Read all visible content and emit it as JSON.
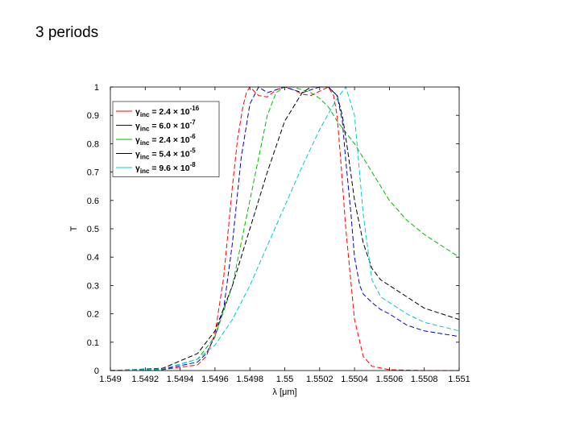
{
  "slide": {
    "title": "3 periods"
  },
  "chart_data": {
    "type": "line",
    "xlabel": "λ [μm]",
    "ylabel": "T",
    "xlim": [
      1.549,
      1.551
    ],
    "ylim": [
      0,
      1
    ],
    "xticks": [
      "1.549",
      "1.5492",
      "1.5494",
      "1.5496",
      "1.5498",
      "1.55",
      "1.5502",
      "1.5504",
      "1.5506",
      "1.5508",
      "1.551"
    ],
    "yticks": [
      "0",
      "0.1",
      "0.2",
      "0.3",
      "0.4",
      "0.5",
      "0.6",
      "0.7",
      "0.8",
      "0.9",
      "1"
    ],
    "grid": false,
    "legend_position": "top-left",
    "series": [
      {
        "name": "γinc = 2.4 × 10⁻¹⁶",
        "legend_base": "γ",
        "legend_sub": "inc",
        "legend_value": " = 2.4 × 10",
        "legend_exp": "-16",
        "color": "#ff0000",
        "dash": "dashed",
        "x": [
          1.549,
          1.5493,
          1.5495,
          1.54955,
          1.5496,
          1.54965,
          1.5497,
          1.54973,
          1.54976,
          1.54978,
          1.5498,
          1.54985,
          1.5499,
          1.54995,
          1.55,
          1.55005,
          1.5501,
          1.55015,
          1.5502,
          1.55025,
          1.55028,
          1.5503,
          1.55032,
          1.55035,
          1.5504,
          1.55045,
          1.5505,
          1.5506,
          1.5508,
          1.551
        ],
        "y": [
          0,
          0.003,
          0.02,
          0.05,
          0.13,
          0.33,
          0.65,
          0.82,
          0.93,
          0.98,
          1.0,
          0.97,
          0.965,
          0.99,
          1.0,
          0.99,
          0.975,
          0.97,
          0.985,
          1.0,
          0.97,
          0.9,
          0.75,
          0.5,
          0.18,
          0.05,
          0.015,
          0.003,
          0.0,
          0.0
        ]
      },
      {
        "name": "γinc = 6.0 × 10⁻⁷",
        "legend_base": "γ",
        "legend_sub": "inc",
        "legend_value": " = 6.0 × 10",
        "legend_exp": "-7",
        "color": "#0000cc",
        "dash": "dashed",
        "x": [
          1.549,
          1.5493,
          1.5495,
          1.54955,
          1.5496,
          1.54965,
          1.5497,
          1.54975,
          1.5498,
          1.54985,
          1.5499,
          1.54995,
          1.55,
          1.55005,
          1.5501,
          1.55015,
          1.5502,
          1.55025,
          1.5503,
          1.55033,
          1.55035,
          1.55038,
          1.5504,
          1.55043,
          1.55045,
          1.5505,
          1.55055,
          1.5506,
          1.5507,
          1.5508,
          1.551
        ],
        "y": [
          0,
          0.004,
          0.03,
          0.06,
          0.12,
          0.22,
          0.45,
          0.75,
          0.94,
          1.0,
          0.98,
          0.99,
          1.0,
          0.99,
          0.98,
          0.99,
          1.0,
          1.0,
          0.97,
          0.88,
          0.74,
          0.55,
          0.4,
          0.3,
          0.27,
          0.24,
          0.215,
          0.2,
          0.16,
          0.14,
          0.12
        ]
      },
      {
        "name": "γinc = 2.4 × 10⁻⁶",
        "legend_base": "γ",
        "legend_sub": "inc",
        "legend_value": " = 2.4 × 10",
        "legend_exp": "-6",
        "color": "#00bb00",
        "dash": "dashed",
        "x": [
          1.549,
          1.5493,
          1.5495,
          1.5496,
          1.5497,
          1.5498,
          1.54985,
          1.5499,
          1.54995,
          1.55,
          1.55005,
          1.5501,
          1.55015,
          1.5502,
          1.55025,
          1.5503,
          1.55035,
          1.5504,
          1.5505,
          1.5506,
          1.5507,
          1.5508,
          1.5509,
          1.551
        ],
        "y": [
          0,
          0.005,
          0.04,
          0.12,
          0.3,
          0.6,
          0.75,
          0.9,
          0.98,
          1.0,
          1.0,
          0.99,
          0.98,
          0.96,
          0.93,
          0.88,
          0.84,
          0.8,
          0.7,
          0.6,
          0.53,
          0.48,
          0.44,
          0.4
        ]
      },
      {
        "name": "γinc = 5.4 × 10⁻⁵",
        "legend_base": "γ",
        "legend_sub": "inc",
        "legend_value": " = 5.4 × 10",
        "legend_exp": "-5",
        "color": "#000000",
        "dash": "dashed",
        "x": [
          1.549,
          1.5493,
          1.5495,
          1.5496,
          1.5497,
          1.5498,
          1.5499,
          1.55,
          1.5501,
          1.55015,
          1.5502,
          1.55025,
          1.5503,
          1.55033,
          1.55036,
          1.5504,
          1.55045,
          1.5505,
          1.55055,
          1.5506,
          1.5507,
          1.5508,
          1.551
        ],
        "y": [
          0,
          0.008,
          0.06,
          0.14,
          0.3,
          0.5,
          0.7,
          0.88,
          0.98,
          1.0,
          1.0,
          1.0,
          0.97,
          0.9,
          0.78,
          0.6,
          0.45,
          0.36,
          0.32,
          0.3,
          0.26,
          0.22,
          0.18
        ]
      },
      {
        "name": "γinc = 9.6 × 10⁻⁸",
        "legend_base": "γ",
        "legend_sub": "inc",
        "legend_value": " = 9.6 × 10",
        "legend_exp": "-8",
        "color": "#00cccc",
        "dash": "dashed",
        "x": [
          1.549,
          1.5493,
          1.5495,
          1.5496,
          1.5497,
          1.5498,
          1.5499,
          1.55,
          1.5501,
          1.5502,
          1.5503,
          1.55035,
          1.5504,
          1.55045,
          1.5505,
          1.55055,
          1.5506,
          1.5507,
          1.5508,
          1.551
        ],
        "y": [
          0,
          0.006,
          0.04,
          0.09,
          0.18,
          0.3,
          0.44,
          0.58,
          0.72,
          0.85,
          0.96,
          1.0,
          0.9,
          0.55,
          0.32,
          0.26,
          0.24,
          0.2,
          0.17,
          0.14
        ]
      }
    ]
  }
}
